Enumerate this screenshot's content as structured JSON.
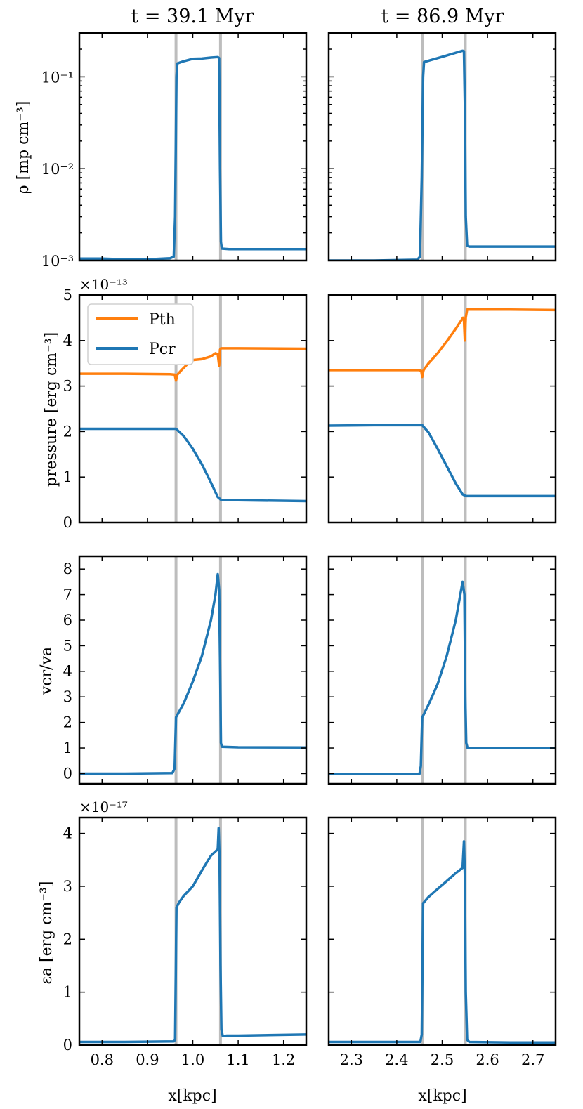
{
  "figure": {
    "columns": [
      {
        "title": "t = 39.1 Myr",
        "xlabel": "x[kpc]",
        "xlim": [
          0.75,
          1.25
        ],
        "xticks": [
          0.8,
          0.9,
          1.0,
          1.1,
          1.2
        ],
        "xtick_labels": [
          "0.8",
          "0.9",
          "1.0",
          "1.1",
          "1.2"
        ],
        "shock_lines": [
          0.963,
          1.061
        ]
      },
      {
        "title": "t = 86.9 Myr",
        "xlabel": "x[kpc]",
        "xlim": [
          2.25,
          2.75
        ],
        "xticks": [
          2.3,
          2.4,
          2.5,
          2.6,
          2.7
        ],
        "xtick_labels": [
          "2.3",
          "2.4",
          "2.5",
          "2.6",
          "2.7"
        ],
        "shock_lines": [
          2.456,
          2.551
        ]
      }
    ],
    "rows": [
      {
        "ylabel": "ρ [mp cm⁻³]",
        "scale": "log",
        "ylim": [
          0.001,
          0.3
        ],
        "ytick_labels": [
          "10⁻³",
          "10⁻²",
          "10⁻¹"
        ],
        "multiplier": ""
      },
      {
        "ylabel": "pressure [erg cm⁻³]",
        "scale": "linear",
        "ylim": [
          0,
          5
        ],
        "ytick_labels": [
          "0",
          "1",
          "2",
          "3",
          "4",
          "5"
        ],
        "multiplier": "×10⁻¹³"
      },
      {
        "ylabel": "vcr/va",
        "scale": "linear",
        "ylim": [
          -0.4,
          8.5
        ],
        "ytick_labels": [
          "0",
          "1",
          "2",
          "3",
          "4",
          "5",
          "6",
          "7",
          "8"
        ],
        "multiplier": ""
      },
      {
        "ylabel": "εa [erg cm⁻³]",
        "scale": "linear",
        "ylim": [
          0,
          4.3
        ],
        "ytick_labels": [
          "0",
          "1",
          "2",
          "3",
          "4"
        ],
        "multiplier": "×10⁻¹⁷"
      }
    ],
    "legend": {
      "items": [
        {
          "label": "Pth",
          "color": "#ff7f0e"
        },
        {
          "label": "Pcr",
          "color": "#1f77b4"
        }
      ]
    }
  },
  "colors": {
    "series_blue": "#1f77b4",
    "series_orange": "#ff7f0e",
    "shock_line": "#bdbdbd"
  },
  "chart_data": [
    {
      "type": "line",
      "title": "t = 39.1 Myr",
      "ylabel": "ρ [mp cm⁻³]",
      "xlabel": "",
      "yscale": "log",
      "xlim": [
        0.75,
        1.25
      ],
      "ylim": [
        0.001,
        0.3
      ],
      "series": [
        {
          "name": "rho",
          "color": "#1f77b4",
          "x": [
            0.75,
            0.8,
            0.85,
            0.9,
            0.95,
            0.958,
            0.961,
            0.964,
            0.966,
            0.98,
            1.0,
            1.02,
            1.04,
            1.055,
            1.058,
            1.06,
            1.062,
            1.064,
            1.08,
            1.15,
            1.25
          ],
          "y": [
            0.00105,
            0.00105,
            0.00103,
            0.00103,
            0.00106,
            0.0011,
            0.003,
            0.1,
            0.14,
            0.148,
            0.157,
            0.158,
            0.162,
            0.164,
            0.16,
            0.01,
            0.0016,
            0.00135,
            0.00133,
            0.00133,
            0.00133
          ]
        }
      ]
    },
    {
      "type": "line",
      "title": "t = 86.9 Myr",
      "ylabel": "ρ [mp cm⁻³]",
      "xlabel": "",
      "yscale": "log",
      "xlim": [
        2.25,
        2.75
      ],
      "ylim": [
        0.001,
        0.3
      ],
      "series": [
        {
          "name": "rho",
          "color": "#1f77b4",
          "x": [
            2.25,
            2.35,
            2.445,
            2.451,
            2.455,
            2.458,
            2.46,
            2.5,
            2.545,
            2.548,
            2.55,
            2.552,
            2.555,
            2.56,
            2.65,
            2.75
          ],
          "y": [
            0.001,
            0.001,
            0.00102,
            0.0011,
            0.008,
            0.1,
            0.145,
            0.165,
            0.192,
            0.19,
            0.05,
            0.003,
            0.00145,
            0.00142,
            0.00142,
            0.00142
          ]
        }
      ]
    },
    {
      "type": "line",
      "title": "t = 39.1 Myr",
      "ylabel": "pressure [erg cm⁻³]",
      "xlabel": "",
      "xlim": [
        0.75,
        1.25
      ],
      "ylim": [
        0,
        5
      ],
      "multiplier": "×10⁻¹³",
      "series": [
        {
          "name": "Pth",
          "color": "#ff7f0e",
          "x": [
            0.75,
            0.85,
            0.95,
            0.96,
            0.963,
            0.966,
            0.975,
            0.99,
            1.0,
            1.02,
            1.04,
            1.05,
            1.055,
            1.058,
            1.06,
            1.062,
            1.1,
            1.25
          ],
          "y": [
            3.27,
            3.27,
            3.26,
            3.25,
            3.12,
            3.25,
            3.35,
            3.5,
            3.57,
            3.59,
            3.65,
            3.72,
            3.7,
            3.45,
            3.8,
            3.83,
            3.83,
            3.82
          ]
        },
        {
          "name": "Pcr",
          "color": "#1f77b4",
          "x": [
            0.75,
            0.85,
            0.95,
            0.963,
            0.98,
            1.0,
            1.02,
            1.04,
            1.055,
            1.062,
            1.1,
            1.25
          ],
          "y": [
            2.06,
            2.06,
            2.06,
            2.06,
            1.9,
            1.62,
            1.28,
            0.88,
            0.56,
            0.5,
            0.49,
            0.47
          ]
        }
      ]
    },
    {
      "type": "line",
      "title": "t = 86.9 Myr",
      "ylabel": "pressure [erg cm⁻³]",
      "xlabel": "",
      "xlim": [
        2.25,
        2.75
      ],
      "ylim": [
        0,
        5
      ],
      "multiplier": "×10⁻¹³",
      "series": [
        {
          "name": "Pth",
          "color": "#ff7f0e",
          "x": [
            2.25,
            2.35,
            2.45,
            2.454,
            2.456,
            2.459,
            2.47,
            2.49,
            2.51,
            2.53,
            2.546,
            2.548,
            2.55,
            2.552,
            2.555,
            2.65,
            2.75
          ],
          "y": [
            3.35,
            3.35,
            3.35,
            3.33,
            3.2,
            3.35,
            3.5,
            3.72,
            3.98,
            4.26,
            4.5,
            4.45,
            4.0,
            4.5,
            4.68,
            4.68,
            4.67
          ]
        },
        {
          "name": "Pcr",
          "color": "#1f77b4",
          "x": [
            2.25,
            2.35,
            2.456,
            2.47,
            2.49,
            2.51,
            2.53,
            2.545,
            2.552,
            2.65,
            2.75
          ],
          "y": [
            2.13,
            2.14,
            2.14,
            1.98,
            1.62,
            1.24,
            0.86,
            0.62,
            0.58,
            0.58,
            0.58
          ]
        }
      ]
    },
    {
      "type": "line",
      "title": "t = 39.1 Myr",
      "ylabel": "vcr/va",
      "xlabel": "",
      "xlim": [
        0.75,
        1.25
      ],
      "ylim": [
        -0.4,
        8.5
      ],
      "series": [
        {
          "name": "vcr/va",
          "color": "#1f77b4",
          "x": [
            0.75,
            0.85,
            0.955,
            0.96,
            0.963,
            0.966,
            0.98,
            1.0,
            1.02,
            1.04,
            1.05,
            1.055,
            1.058,
            1.06,
            1.062,
            1.064,
            1.1,
            1.25
          ],
          "y": [
            0.0,
            0.0,
            0.02,
            0.2,
            2.2,
            2.3,
            2.75,
            3.6,
            4.6,
            6.0,
            7.0,
            7.8,
            7.2,
            4.5,
            1.2,
            1.05,
            1.03,
            1.02
          ]
        }
      ]
    },
    {
      "type": "line",
      "title": "t = 86.9 Myr",
      "ylabel": "vcr/va",
      "xlabel": "",
      "xlim": [
        2.25,
        2.75
      ],
      "ylim": [
        -0.4,
        8.5
      ],
      "series": [
        {
          "name": "vcr/va",
          "color": "#1f77b4",
          "x": [
            2.25,
            2.35,
            2.45,
            2.453,
            2.456,
            2.459,
            2.47,
            2.49,
            2.51,
            2.53,
            2.545,
            2.549,
            2.551,
            2.553,
            2.556,
            2.6,
            2.75
          ],
          "y": [
            -0.02,
            -0.02,
            -0.01,
            0.3,
            2.2,
            2.3,
            2.7,
            3.5,
            4.6,
            6.0,
            7.5,
            7.0,
            3.0,
            1.2,
            1.0,
            1.0,
            1.0
          ]
        }
      ]
    },
    {
      "type": "line",
      "title": "t = 39.1 Myr",
      "ylabel": "εa [erg cm⁻³]",
      "xlabel": "x[kpc]",
      "xlim": [
        0.75,
        1.25
      ],
      "ylim": [
        0,
        4.3
      ],
      "multiplier": "×10⁻¹⁷",
      "series": [
        {
          "name": "eps_a",
          "color": "#1f77b4",
          "x": [
            0.75,
            0.85,
            0.958,
            0.961,
            0.964,
            0.97,
            0.98,
            1.0,
            1.02,
            1.04,
            1.055,
            1.057,
            1.059,
            1.061,
            1.063,
            1.066,
            1.075,
            1.1,
            1.25
          ],
          "y": [
            0.06,
            0.06,
            0.07,
            0.1,
            2.6,
            2.7,
            2.82,
            3.0,
            3.3,
            3.58,
            3.7,
            4.1,
            3.5,
            1.5,
            0.3,
            0.17,
            0.18,
            0.18,
            0.2
          ]
        }
      ]
    },
    {
      "type": "line",
      "title": "t = 86.9 Myr",
      "ylabel": "εa [erg cm⁻³]",
      "xlabel": "x[kpc]",
      "xlim": [
        2.25,
        2.75
      ],
      "ylim": [
        0,
        4.3
      ],
      "multiplier": "×10⁻¹⁷",
      "series": [
        {
          "name": "eps_a",
          "color": "#1f77b4",
          "x": [
            2.25,
            2.35,
            2.452,
            2.455,
            2.458,
            2.47,
            2.49,
            2.51,
            2.53,
            2.545,
            2.548,
            2.55,
            2.552,
            2.555,
            2.56,
            2.65,
            2.75
          ],
          "y": [
            0.06,
            0.06,
            0.06,
            0.2,
            2.68,
            2.8,
            2.95,
            3.1,
            3.25,
            3.35,
            3.85,
            3.2,
            1.0,
            0.1,
            0.06,
            0.05,
            0.05
          ]
        }
      ]
    }
  ]
}
